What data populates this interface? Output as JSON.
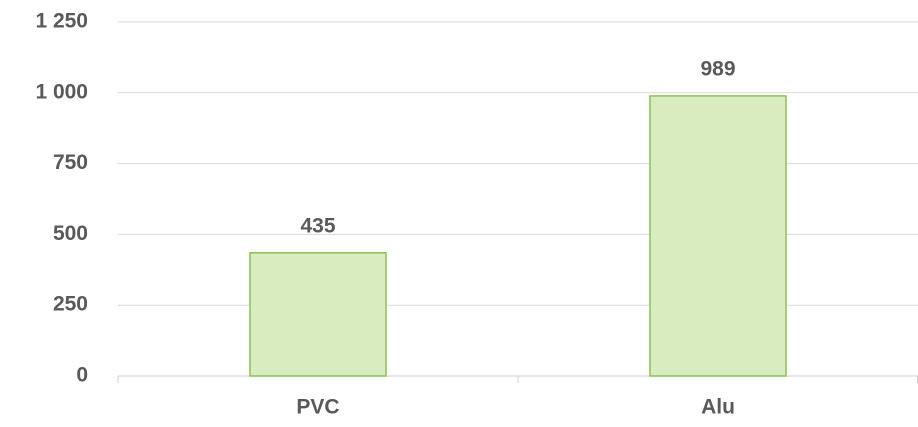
{
  "chart_data": {
    "type": "bar",
    "categories": [
      "PVC",
      "Alu"
    ],
    "values": [
      435,
      989
    ],
    "color": "#d8ecc0",
    "edge_color": "#8cc152",
    "ylim": [
      0,
      1250
    ],
    "yticks": [
      0,
      250,
      500,
      750,
      {
        "value": 1000,
        "label": "1 000"
      },
      {
        "value": 1250,
        "label": "1 250"
      }
    ],
    "grid": true
  }
}
